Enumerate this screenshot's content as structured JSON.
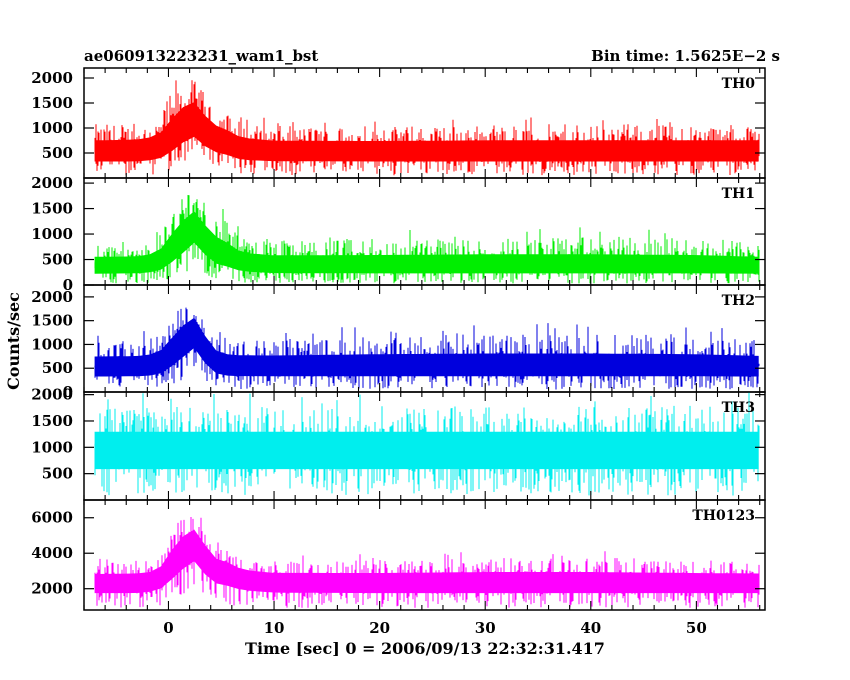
{
  "header": {
    "obs_id": "ae060913223231_wam1_bst",
    "bin_time": "Bin time: 1.5625E−2 s"
  },
  "chart_data": {
    "type": "line",
    "title": "ae060913223231_wam1_bst",
    "subtitle": "Bin time: 1.5625E−2 s",
    "xlabel": "Time [sec] 0 = 2006/09/13 22:32:31.417",
    "ylabel": "Counts/sec",
    "xlim": [
      -8,
      56.5
    ],
    "x_ticks": [
      0,
      10,
      20,
      30,
      40,
      50
    ],
    "x_tick_labels": [
      "0",
      "10",
      "20",
      "30",
      "40",
      "50"
    ],
    "grid": false,
    "legend": "none",
    "panels": [
      {
        "name": "TH0",
        "color": "#ff0000",
        "ylim": [
          0,
          2200
        ],
        "y_ticks": [
          500,
          1000,
          1500,
          2000
        ],
        "y_tick_labels": [
          "500",
          "1000",
          "1500",
          "2000"
        ],
        "profile": {
          "x": [
            -7,
            -3,
            -1,
            0,
            1,
            2,
            2.5,
            3,
            4,
            5,
            6,
            7,
            10,
            20,
            30,
            40,
            50,
            55.9
          ],
          "mean": [
            560,
            560,
            620,
            800,
            1050,
            1280,
            1250,
            1150,
            850,
            780,
            700,
            610,
            570,
            560,
            560,
            560,
            560,
            560
          ],
          "min": [
            50,
            50,
            60,
            100,
            150,
            250,
            300,
            250,
            120,
            180,
            90,
            60,
            50,
            50,
            50,
            50,
            50,
            50
          ],
          "max": [
            1250,
            1300,
            1400,
            1900,
            2100,
            2200,
            2200,
            2100,
            1600,
            1700,
            1400,
            1300,
            1200,
            1200,
            1250,
            1250,
            1250,
            1250
          ]
        }
      },
      {
        "name": "TH1",
        "color": "#00ee00",
        "ylim": [
          0,
          2100
        ],
        "y_ticks": [
          0,
          500,
          1000,
          1500,
          2000
        ],
        "y_tick_labels": [
          "0",
          "500",
          "1000",
          "1500",
          "2000"
        ],
        "profile": {
          "x": [
            -7,
            -3,
            -1,
            0,
            1,
            2,
            2.5,
            3,
            4,
            5,
            6,
            7,
            10,
            20,
            30,
            40,
            50,
            55.9
          ],
          "mean": [
            380,
            390,
            450,
            650,
            900,
            1150,
            1200,
            1100,
            700,
            650,
            550,
            450,
            400,
            390,
            390,
            390,
            390,
            380
          ],
          "min": [
            30,
            30,
            40,
            80,
            150,
            250,
            400,
            300,
            120,
            100,
            60,
            40,
            30,
            30,
            30,
            30,
            30,
            30
          ],
          "max": [
            1000,
            1000,
            1100,
            1600,
            1900,
            2050,
            2100,
            2000,
            1700,
            1600,
            1300,
            1100,
            1050,
            1100,
            1150,
            1150,
            1100,
            1000
          ]
        }
      },
      {
        "name": "TH2",
        "color": "#0000dd",
        "ylim": [
          0,
          2250
        ],
        "y_ticks": [
          0,
          500,
          1000,
          1500,
          2000
        ],
        "y_tick_labels": [
          "0",
          "500",
          "1000",
          "1500",
          "2000"
        ],
        "profile": {
          "x": [
            -7,
            -3,
            -1,
            0,
            1,
            2,
            2.5,
            3,
            4,
            5,
            6,
            10,
            20,
            30,
            40,
            50,
            55.9
          ],
          "mean": [
            550,
            560,
            600,
            800,
            1050,
            1250,
            1300,
            1150,
            700,
            600,
            570,
            560,
            560,
            560,
            560,
            560,
            550
          ],
          "min": [
            50,
            50,
            60,
            100,
            200,
            350,
            500,
            300,
            100,
            60,
            50,
            50,
            50,
            50,
            50,
            50,
            50
          ],
          "max": [
            1250,
            1250,
            1350,
            1700,
            2000,
            2250,
            2250,
            2100,
            1500,
            1400,
            1300,
            1300,
            1400,
            1450,
            1450,
            1400,
            1300
          ]
        }
      },
      {
        "name": "TH3",
        "color": "#00eeee",
        "ylim": [
          0,
          2050
        ],
        "y_ticks": [
          500,
          1000,
          1500,
          2000
        ],
        "y_tick_labels": [
          "500",
          "1000",
          "1500",
          "2000"
        ],
        "profile": {
          "x": [
            -7,
            0,
            10,
            20,
            30,
            40,
            50,
            55.9
          ],
          "mean": [
            1000,
            1000,
            1000,
            1000,
            1000,
            1000,
            1000,
            1000
          ],
          "min": [
            80,
            80,
            80,
            80,
            80,
            80,
            80,
            80
          ],
          "max": [
            2050,
            2050,
            2050,
            2050,
            2050,
            2050,
            2050,
            2050
          ]
        }
      },
      {
        "name": "TH0123",
        "color": "#ff00ff",
        "ylim": [
          800,
          7000
        ],
        "y_ticks": [
          2000,
          4000,
          6000
        ],
        "y_tick_labels": [
          "2000",
          "4000",
          "6000"
        ],
        "profile": {
          "x": [
            -7,
            -3,
            -1,
            0,
            1,
            2,
            2.5,
            3,
            4,
            5,
            6,
            7,
            10,
            20,
            30,
            40,
            50,
            55.9
          ],
          "mean": [
            2450,
            2450,
            2600,
            3300,
            4100,
            4600,
            4700,
            4400,
            3300,
            3200,
            3000,
            2700,
            2500,
            2450,
            2450,
            2450,
            2450,
            2450
          ],
          "min": [
            900,
            900,
            1000,
            1200,
            1500,
            2000,
            2200,
            1800,
            1200,
            1100,
            1000,
            950,
            900,
            900,
            900,
            900,
            900,
            900
          ],
          "max": [
            3800,
            3900,
            4000,
            5500,
            6400,
            7000,
            7000,
            6800,
            5000,
            4700,
            4400,
            4000,
            3900,
            4000,
            4200,
            4200,
            4000,
            3900
          ]
        }
      }
    ]
  }
}
